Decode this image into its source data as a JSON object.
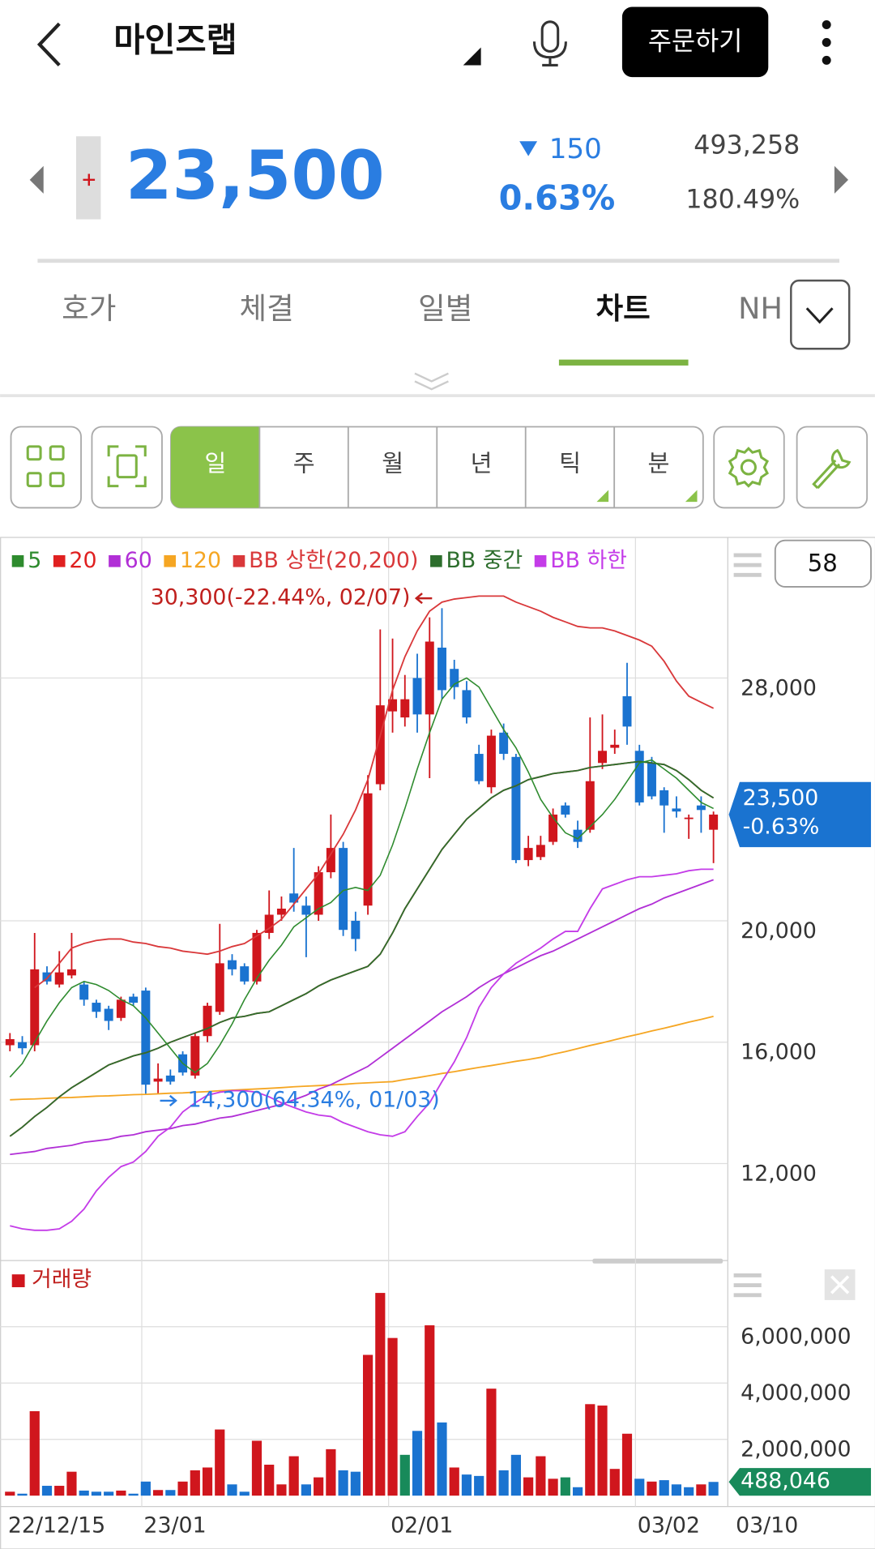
{
  "header": {
    "title": "마인즈랩",
    "order_button": "주문하기"
  },
  "quote": {
    "price": "23,500",
    "change": "150",
    "change_rate": "0.63%",
    "volume": "493,258",
    "volume_ratio": "180.49%"
  },
  "tabs": [
    "호가",
    "체결",
    "일별",
    "차트",
    "NH"
  ],
  "periods": [
    "일",
    "주",
    "월",
    "년",
    "틱",
    "분"
  ],
  "chart_data": {
    "type": "candlestick",
    "bar_count": "58",
    "up_color": "#d0161d",
    "down_color": "#1a73d0",
    "flat_color": "#188a5a",
    "categories": [
      "22/12/15",
      null,
      null,
      null,
      null,
      null,
      null,
      null,
      null,
      null,
      null,
      "23/01",
      null,
      null,
      null,
      null,
      null,
      null,
      null,
      null,
      null,
      null,
      null,
      null,
      null,
      null,
      null,
      null,
      null,
      null,
      null,
      "02/01",
      null,
      null,
      null,
      null,
      null,
      null,
      null,
      null,
      null,
      null,
      null,
      null,
      null,
      null,
      null,
      null,
      null,
      null,
      null,
      "03/02",
      null,
      null,
      null,
      null,
      null,
      "03/10"
    ],
    "candles": {
      "open": [
        15900,
        16000,
        15900,
        18300,
        17900,
        18200,
        17900,
        17300,
        17100,
        16800,
        17500,
        17700,
        14700,
        14900,
        15600,
        14900,
        16200,
        17000,
        18700,
        18500,
        18000,
        19600,
        20200,
        20900,
        20500,
        20200,
        21600,
        22400,
        20000,
        20500,
        24500,
        26900,
        26700,
        28000,
        26800,
        29000,
        28300,
        27600,
        25500,
        24400,
        26200,
        25400,
        22000,
        22100,
        22600,
        23800,
        23000,
        23000,
        25200,
        25700,
        27400,
        25600,
        25200,
        24300,
        23700,
        23400,
        23800,
        23000
      ],
      "high": [
        16300,
        16200,
        19600,
        18500,
        19000,
        19600,
        18000,
        17400,
        17200,
        17500,
        17600,
        17800,
        15300,
        15100,
        15700,
        16300,
        17300,
        19900,
        18900,
        18600,
        19700,
        21000,
        20800,
        22400,
        20800,
        21800,
        23500,
        22600,
        20300,
        24800,
        29600,
        29300,
        28100,
        28800,
        30000,
        30300,
        28600,
        27900,
        25800,
        26300,
        26500,
        25500,
        22800,
        22800,
        23700,
        23900,
        23300,
        26700,
        26800,
        26300,
        28500,
        25800,
        25400,
        24400,
        24100,
        23500,
        24100,
        23600
      ],
      "low": [
        15700,
        15600,
        15700,
        17900,
        17800,
        18100,
        17200,
        16800,
        16400,
        16700,
        17200,
        14300,
        14300,
        14600,
        14900,
        14800,
        16000,
        16900,
        18200,
        17900,
        17900,
        19400,
        20000,
        20300,
        18800,
        20000,
        21400,
        19500,
        19000,
        20200,
        24300,
        26200,
        26400,
        26200,
        24700,
        27300,
        27300,
        26500,
        24500,
        24200,
        25300,
        21900,
        21800,
        22000,
        22500,
        23400,
        22400,
        22900,
        25000,
        25500,
        25800,
        23800,
        24000,
        22900,
        23400,
        22700,
        22900,
        21900
      ],
      "close": [
        16100,
        15800,
        18400,
        18000,
        18300,
        18400,
        17400,
        17000,
        16700,
        17400,
        17300,
        14600,
        14800,
        14700,
        15000,
        16200,
        17200,
        18600,
        18400,
        18000,
        19600,
        20200,
        20400,
        20600,
        20200,
        21600,
        22400,
        19700,
        19400,
        24200,
        27100,
        27300,
        27300,
        26800,
        29200,
        27600,
        27700,
        26700,
        24600,
        26100,
        25500,
        22000,
        22400,
        22500,
        23500,
        23500,
        22600,
        24600,
        25600,
        25800,
        26400,
        23900,
        24100,
        23800,
        23600,
        23400,
        23650,
        23500
      ]
    },
    "series": [
      {
        "name": "5",
        "color": "#2e8b2e",
        "values": [
          14850,
          15300,
          16000,
          16700,
          17300,
          17800,
          18000,
          17900,
          17700,
          17400,
          17200,
          16800,
          16300,
          15800,
          15300,
          15000,
          15300,
          15900,
          16600,
          17400,
          18100,
          18700,
          19200,
          19800,
          20100,
          20400,
          20600,
          21000,
          21100,
          21000,
          21500,
          22500,
          23700,
          25000,
          26200,
          27300,
          27800,
          28000,
          27700,
          27000,
          26300,
          25700,
          24900,
          24000,
          23400,
          22900,
          22700,
          23100,
          23500,
          24000,
          24600,
          25200,
          25300,
          25000,
          24700,
          24300,
          23900,
          23700
        ]
      },
      {
        "name": "20",
        "color": "#e02020",
        "values": [
          12900,
          13200,
          13550,
          13850,
          14200,
          14500,
          14750,
          15000,
          15250,
          15400,
          15550,
          15650,
          15800,
          16000,
          16150,
          16300,
          16450,
          16650,
          16800,
          16850,
          16950,
          17000,
          17200,
          17400,
          17600,
          17850,
          18050,
          18200,
          18350,
          18500,
          18900,
          19600,
          20400,
          21050,
          21700,
          22350,
          22850,
          23350,
          23700,
          24050,
          24300,
          24450,
          24650,
          24750,
          24850,
          24900,
          24950,
          25050,
          25100,
          25150,
          25200,
          25250,
          25200,
          25150,
          24950,
          24650,
          24300,
          24050
        ]
      },
      {
        "name": "60",
        "color": "#b12fd6",
        "values": [
          12300,
          12350,
          12400,
          12500,
          12550,
          12600,
          12700,
          12750,
          12800,
          12900,
          12950,
          13050,
          13100,
          13150,
          13250,
          13300,
          13400,
          13500,
          13550,
          13650,
          13750,
          13850,
          13950,
          14100,
          14250,
          14450,
          14600,
          14800,
          15000,
          15200,
          15500,
          15800,
          16100,
          16400,
          16700,
          17000,
          17250,
          17500,
          17800,
          18050,
          18250,
          18450,
          18650,
          18850,
          19000,
          19200,
          19400,
          19600,
          19800,
          20000,
          20200,
          20400,
          20550,
          20750,
          20900,
          21050,
          21200,
          21350
        ]
      },
      {
        "name": "120",
        "color": "#f5a623",
        "values": [
          14100,
          14120,
          14130,
          14150,
          14170,
          14180,
          14200,
          14220,
          14230,
          14250,
          14270,
          14280,
          14300,
          14320,
          14330,
          14350,
          14370,
          14400,
          14420,
          14440,
          14460,
          14480,
          14500,
          14530,
          14550,
          14570,
          14590,
          14610,
          14640,
          14660,
          14680,
          14700,
          14770,
          14830,
          14900,
          14970,
          15030,
          15100,
          15170,
          15230,
          15300,
          15370,
          15430,
          15500,
          15600,
          15690,
          15790,
          15890,
          15980,
          16080,
          16180,
          16270,
          16370,
          16460,
          16560,
          16660,
          16750,
          16850
        ]
      },
      {
        "name": "BB 상한(20,200)",
        "color": "#d9383a",
        "values": [
          null,
          null,
          17800,
          18100,
          18600,
          19100,
          19250,
          19350,
          19400,
          19400,
          19300,
          19250,
          19150,
          19100,
          19000,
          18950,
          18900,
          19000,
          19150,
          19250,
          19500,
          19750,
          20050,
          20550,
          21050,
          21550,
          22200,
          22850,
          23650,
          24650,
          26100,
          27600,
          28700,
          29550,
          30200,
          30500,
          30600,
          30650,
          30700,
          30700,
          30700,
          30500,
          30350,
          30200,
          30000,
          29850,
          29700,
          29650,
          29650,
          29550,
          29400,
          29250,
          29050,
          28550,
          27900,
          27400,
          27200,
          27000
        ]
      },
      {
        "name": "BB 중간",
        "color": "#2d6e2d",
        "values": [
          12900,
          13200,
          13550,
          13850,
          14200,
          14500,
          14750,
          15000,
          15250,
          15400,
          15550,
          15650,
          15800,
          16000,
          16150,
          16300,
          16450,
          16650,
          16800,
          16850,
          16950,
          17000,
          17200,
          17400,
          17600,
          17850,
          18050,
          18200,
          18350,
          18500,
          18900,
          19600,
          20400,
          21050,
          21700,
          22350,
          22850,
          23350,
          23700,
          24050,
          24300,
          24450,
          24650,
          24750,
          24850,
          24900,
          24950,
          25050,
          25100,
          25150,
          25200,
          25250,
          25200,
          25150,
          24950,
          24650,
          24300,
          24050
        ]
      },
      {
        "name": "BB 하한",
        "color": "#c43ce8",
        "values": [
          9950,
          9850,
          9800,
          9800,
          9850,
          10100,
          10500,
          11100,
          11550,
          11900,
          12050,
          12400,
          12900,
          13200,
          13700,
          14000,
          14250,
          14350,
          14400,
          14400,
          14350,
          14200,
          14000,
          13850,
          13700,
          13600,
          13550,
          13350,
          13200,
          13050,
          12950,
          12900,
          13050,
          13550,
          14000,
          14700,
          15350,
          16150,
          17150,
          17800,
          18250,
          18600,
          18850,
          19100,
          19400,
          19650,
          19650,
          20400,
          21050,
          21200,
          21350,
          21450,
          21450,
          21500,
          21550,
          21650,
          21700,
          21700
        ]
      }
    ],
    "ylim": [
      9000,
      32600
    ],
    "yticks": [
      {
        "value": 12000,
        "label": "12,000"
      },
      {
        "value": 16000,
        "label": "16,000"
      },
      {
        "value": 20000,
        "label": "20,000"
      },
      {
        "value": 28000,
        "label": "28,000"
      }
    ],
    "current": {
      "value": 23500,
      "label": "23,500",
      "change_label": "-0.63%"
    },
    "annotations": [
      {
        "text": "30,300(-22.44%, 02/07)",
        "index": 35,
        "value": 30300,
        "color": "#c0201e"
      },
      {
        "text": "14,300(64.34%, 01/03)",
        "index": 12,
        "value": 14300,
        "color": "#2a7de1"
      }
    ],
    "volume": {
      "name": "거래량",
      "values": [
        140000,
        70000,
        3000000,
        350000,
        350000,
        850000,
        180000,
        140000,
        140000,
        180000,
        70000,
        500000,
        200000,
        200000,
        500000,
        900000,
        1000000,
        2350000,
        400000,
        140000,
        1950000,
        1100000,
        400000,
        1400000,
        400000,
        650000,
        1650000,
        900000,
        850000,
        5000000,
        7200000,
        5600000,
        1450000,
        2300000,
        6050000,
        2600000,
        1000000,
        750000,
        700000,
        3800000,
        900000,
        1450000,
        650000,
        1400000,
        600000,
        650000,
        300000,
        3250000,
        3200000,
        950000,
        2200000,
        600000,
        500000,
        550000,
        400000,
        300000,
        400000,
        488046
      ],
      "last_value_label": "488,046",
      "ylim": [
        0,
        8140000
      ],
      "yticks": [
        {
          "value": 2000000,
          "label": "2,000,000"
        },
        {
          "value": 4000000,
          "label": "4,000,000"
        },
        {
          "value": 6000000,
          "label": "6,000,000"
        }
      ]
    }
  }
}
